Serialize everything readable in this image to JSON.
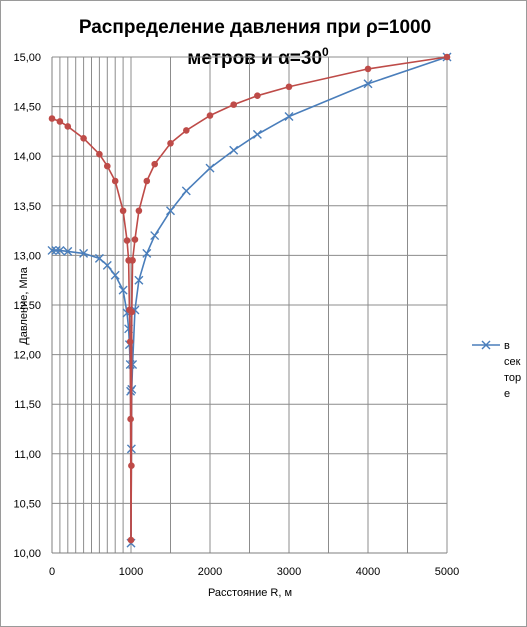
{
  "chart_data": {
    "type": "line",
    "title_line1": "Распределение давления при ρ=1000",
    "title_line2": "метров и α=30",
    "title_sup": "0",
    "xlabel": "Расстояние R, м",
    "ylabel": "Давление, Мпа",
    "xlim": [
      0,
      5000
    ],
    "ylim": [
      10.0,
      15.0
    ],
    "xticks": [
      0,
      1000,
      2000,
      3000,
      4000,
      5000
    ],
    "xtick_labels": [
      "0",
      "1000",
      "2000",
      "3000",
      "4000",
      "5000"
    ],
    "yticks": [
      10.0,
      10.5,
      11.0,
      11.5,
      12.0,
      12.5,
      13.0,
      13.5,
      14.0,
      14.5,
      15.0
    ],
    "ytick_labels": [
      "10,00",
      "10,50",
      "11,00",
      "11,50",
      "12,00",
      "12,50",
      "13,00",
      "13,50",
      "14,00",
      "14,50",
      "15,00"
    ],
    "x_minor_gridlines": [
      100,
      200,
      300,
      400,
      500,
      600,
      700,
      800,
      900,
      1000,
      1500,
      2500,
      3500,
      4500
    ],
    "grid": true,
    "legend_position": "right",
    "series": [
      {
        "name": "в сек тор е",
        "legend_lines": [
          "в",
          "сек",
          "тор",
          "е"
        ],
        "color": "#4a7ebb",
        "marker": "x",
        "x": [
          0,
          50,
          100,
          200,
          400,
          600,
          700,
          800,
          900,
          950,
          970,
          980,
          990,
          995,
          1000,
          1005,
          1010,
          1020,
          1050,
          1100,
          1200,
          1300,
          1500,
          1700,
          2000,
          2300,
          2600,
          3000,
          4000,
          5000
        ],
        "y": [
          13.05,
          13.05,
          13.05,
          13.04,
          13.02,
          12.97,
          12.9,
          12.8,
          12.65,
          12.42,
          12.26,
          12.1,
          11.9,
          11.63,
          10.1,
          11.05,
          11.65,
          11.9,
          12.45,
          12.75,
          13.02,
          13.2,
          13.45,
          13.65,
          13.88,
          14.06,
          14.22,
          14.4,
          14.73,
          15.0
        ]
      },
      {
        "name": "",
        "color": "#be4b48",
        "marker": "circle",
        "x": [
          0,
          100,
          200,
          400,
          600,
          700,
          800,
          900,
          950,
          970,
          980,
          990,
          995,
          1000,
          1005,
          1010,
          1020,
          1050,
          1100,
          1200,
          1300,
          1500,
          1700,
          2000,
          2300,
          2600,
          3000,
          4000,
          5000
        ],
        "y": [
          14.38,
          14.35,
          14.3,
          14.18,
          14.02,
          13.9,
          13.75,
          13.45,
          13.15,
          12.95,
          12.45,
          12.13,
          11.35,
          10.13,
          10.88,
          12.43,
          12.95,
          13.16,
          13.45,
          13.75,
          13.92,
          14.13,
          14.26,
          14.41,
          14.52,
          14.61,
          14.7,
          14.88,
          15.0
        ]
      }
    ]
  }
}
